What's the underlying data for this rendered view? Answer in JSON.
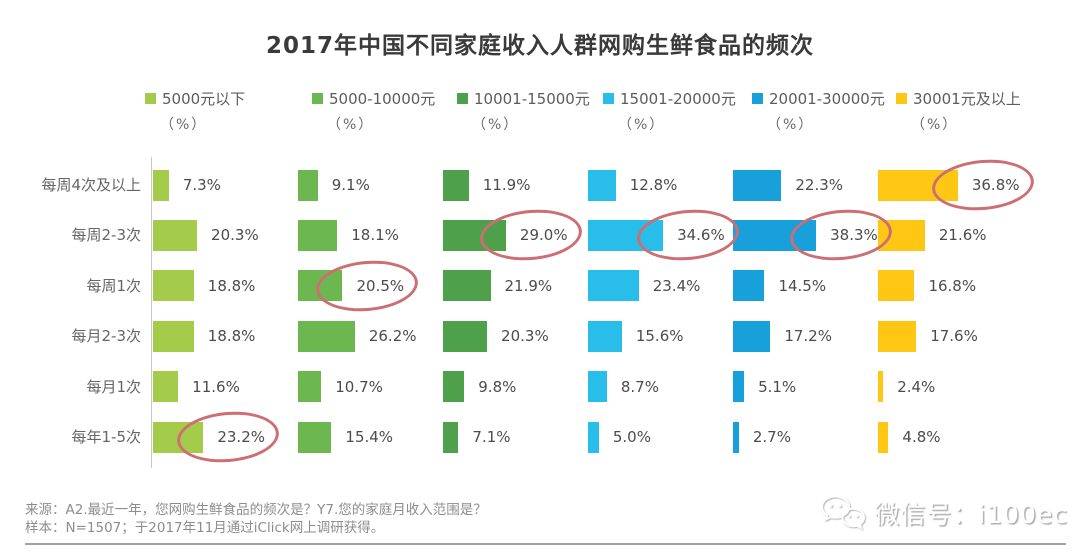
{
  "title": "2017年中国不同家庭收入人群网购生鲜食品的频次",
  "unit_label": "（%）",
  "chart_data": {
    "type": "bar",
    "orientation": "horizontal",
    "title": "2017年中国不同家庭收入人群网购生鲜食品的频次",
    "categories": [
      "每周4次及以上",
      "每周2-3次",
      "每周1次",
      "每月2-3次",
      "每月1次",
      "每年1-5次"
    ],
    "series": [
      {
        "name": "5000元以下",
        "color": "#a5cb4a",
        "values": [
          7.3,
          20.3,
          18.8,
          18.8,
          11.6,
          23.2
        ]
      },
      {
        "name": "5000-10000元",
        "color": "#6cb750",
        "values": [
          9.1,
          18.1,
          20.5,
          26.2,
          10.7,
          15.4
        ]
      },
      {
        "name": "10001-15000元",
        "color": "#4fa04b",
        "values": [
          11.9,
          29.0,
          21.9,
          20.3,
          9.8,
          7.1
        ]
      },
      {
        "name": "15001-20000元",
        "color": "#29bde9",
        "values": [
          12.8,
          34.6,
          23.4,
          15.6,
          8.7,
          5.0
        ]
      },
      {
        "name": "20001-30000元",
        "color": "#18a0da",
        "values": [
          22.3,
          38.3,
          14.5,
          17.2,
          5.1,
          2.7
        ]
      },
      {
        "name": "30001元及以上",
        "color": "#fdc713",
        "values": [
          36.8,
          21.6,
          16.8,
          17.6,
          2.4,
          4.8
        ]
      }
    ],
    "value_suffix": "%",
    "legend_position": "top",
    "grid": false,
    "annotations": [
      {
        "series": 0,
        "row": 5,
        "label": "23.2%"
      },
      {
        "series": 1,
        "row": 2,
        "label": "20.5%"
      },
      {
        "series": 2,
        "row": 1,
        "label": "29.0%"
      },
      {
        "series": 3,
        "row": 1,
        "label": "34.6%"
      },
      {
        "series": 4,
        "row": 1,
        "label": "38.3%"
      },
      {
        "series": 5,
        "row": 0,
        "label": "36.8%"
      }
    ],
    "annotation_color": "#cd6e73"
  },
  "footer": {
    "source_line1": "来源：A2.最近一年，您网购生鲜食品的频次是？Y7.您的家庭月收入范围是？",
    "source_line2": "样本：N=1507；于2017年11月通过iClick网上调研获得。"
  },
  "watermark": {
    "label": "微信号：i100ec",
    "icon": "wechat-icon"
  }
}
